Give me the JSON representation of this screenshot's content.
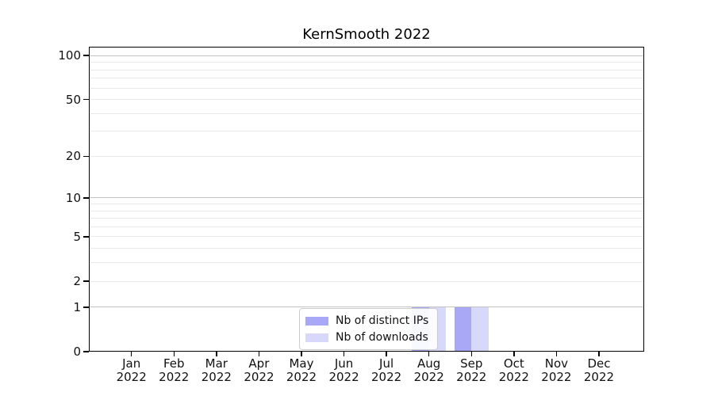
{
  "colors": {
    "background": "#ffffff",
    "frame": "#000000",
    "grid_major": "#c3c3c3",
    "grid_minor": "#e9e9e9",
    "text": "#111111",
    "legend_border": "#cccccc",
    "bar_distinct_ips": "#a8a8f6",
    "bar_downloads": "#d8d8fa"
  },
  "chart_data": {
    "type": "bar",
    "title": "KernSmooth 2022",
    "x_months": [
      "Jan",
      "Feb",
      "Mar",
      "Apr",
      "May",
      "Jun",
      "Jul",
      "Aug",
      "Sep",
      "Oct",
      "Nov",
      "Dec"
    ],
    "x_year": "2022",
    "categories": [
      "Jan 2022",
      "Feb 2022",
      "Mar 2022",
      "Apr 2022",
      "May 2022",
      "Jun 2022",
      "Jul 2022",
      "Aug 2022",
      "Sep 2022",
      "Oct 2022",
      "Nov 2022",
      "Dec 2022"
    ],
    "series": [
      {
        "name": "Nb of distinct IPs",
        "color": "#a8a8f6",
        "values": [
          0,
          0,
          0,
          0,
          0,
          0,
          0,
          1,
          1,
          0,
          0,
          0
        ]
      },
      {
        "name": "Nb of downloads",
        "color": "#d8d8fa",
        "values": [
          0,
          0,
          0,
          0,
          0,
          0,
          0,
          1,
          1,
          0,
          0,
          0
        ]
      }
    ],
    "y_axis": {
      "scale": "log10(1+x)",
      "top_value": 115,
      "major_ticks": [
        100,
        50,
        20,
        10,
        5,
        2,
        1,
        0
      ],
      "minor_gridlines": [
        90,
        80,
        70,
        60,
        40,
        30,
        9,
        8,
        7,
        6,
        4,
        3
      ],
      "emphasized_gridlines": [
        100,
        10,
        1
      ]
    },
    "grid": "horizontal",
    "legend_position": "lower center"
  },
  "legend": {
    "items": [
      {
        "label": "Nb of distinct IPs",
        "color": "#a8a8f6"
      },
      {
        "label": "Nb of downloads",
        "color": "#d8d8fa"
      }
    ]
  }
}
